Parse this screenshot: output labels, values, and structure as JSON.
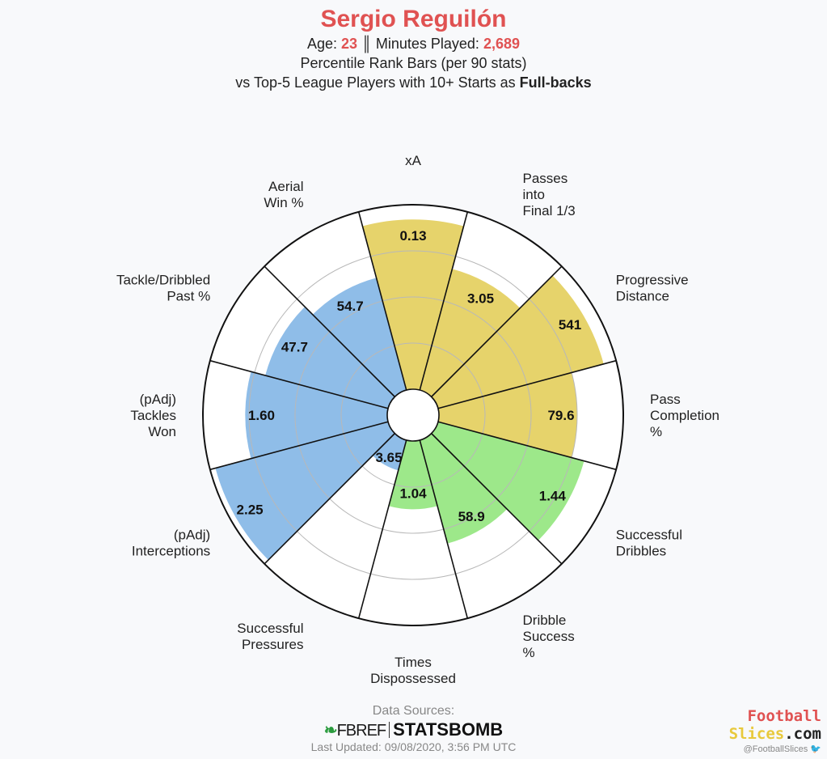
{
  "header": {
    "player_name": "Sergio Reguilón",
    "age_label": "Age:",
    "age_value": "23",
    "separator": "║",
    "minutes_label": "Minutes Played:",
    "minutes_value": "2,689",
    "line2": "Percentile Rank Bars (per 90 stats)",
    "line3_prefix": "vs Top-5 League Players with 10+ Starts as",
    "line3_position": "Full-backs"
  },
  "colors": {
    "attacking": "#e6d36b",
    "possession": "#9de88a",
    "defending": "#8fbde8",
    "title_red": "#e05252"
  },
  "chart_data": {
    "type": "radar-percentile-bars",
    "metrics": [
      {
        "label": [
          "xA"
        ],
        "value": "0.13",
        "percentile": 92,
        "group": "attacking"
      },
      {
        "label": [
          "Passes",
          "into",
          "Final 1/3"
        ],
        "value": "3.05",
        "percentile": 68,
        "group": "attacking"
      },
      {
        "label": [
          "Progressive",
          "Distance"
        ],
        "value": "541",
        "percentile": 93,
        "group": "attacking"
      },
      {
        "label": [
          "Pass",
          "Completion",
          "%"
        ],
        "value": "79.6",
        "percentile": 75,
        "group": "attacking"
      },
      {
        "label": [
          "Successful",
          "Dribbles"
        ],
        "value": "1.44",
        "percentile": 82,
        "group": "possession"
      },
      {
        "label": [
          "Dribble",
          "Success",
          "%"
        ],
        "value": "58.9",
        "percentile": 58,
        "group": "possession"
      },
      {
        "label": [
          "Times",
          "Dispossessed"
        ],
        "value": "1.04",
        "percentile": 37,
        "group": "possession"
      },
      {
        "label": [
          "Successful",
          "Pressures"
        ],
        "value": "3.65",
        "percentile": 17,
        "group": "defending"
      },
      {
        "label": [
          "(pAdj)",
          "Interceptions"
        ],
        "value": "2.25",
        "percentile": 97,
        "group": "defending"
      },
      {
        "label": [
          "(pAdj)",
          "Tackles",
          "Won"
        ],
        "value": "1.60",
        "percentile": 77,
        "group": "defending"
      },
      {
        "label": [
          "Tackle/Dribbled",
          "Past %"
        ],
        "value": "47.7",
        "percentile": 69,
        "group": "defending"
      },
      {
        "label": [
          "Aerial",
          "Win %"
        ],
        "value": "54.7",
        "percentile": 63,
        "group": "defending"
      }
    ]
  },
  "footer": {
    "sources_label": "Data Sources:",
    "fbref_logo": "FBREF",
    "statsbomb_logo": "STATSBOMB",
    "last_updated": "Last Updated: 09/08/2020, 3:56 PM UTC"
  },
  "brand": {
    "line1": "Football",
    "line2_a": "Slices",
    "line2_b": ".com",
    "handle": "@FootballSlices"
  }
}
